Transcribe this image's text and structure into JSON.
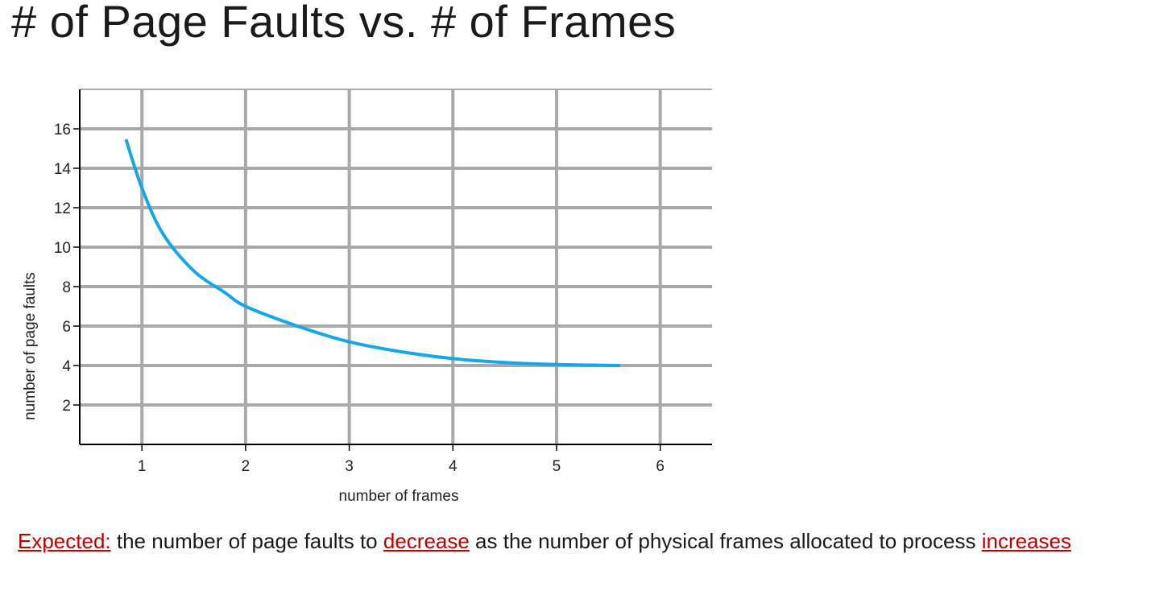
{
  "slide": {
    "title": "# of Page Faults vs. # of Frames"
  },
  "caption": {
    "expected_label": "Expected:",
    "text_1": " the number of page faults to ",
    "decrease": "decrease",
    "text_2": " as the number of physical frames allocated to process ",
    "increases": "increases"
  },
  "chart_data": {
    "type": "line",
    "title": "",
    "xlabel": "number of frames",
    "ylabel": "number of page faults",
    "x_ticks": [
      1,
      2,
      3,
      4,
      5,
      6
    ],
    "y_ticks": [
      2,
      4,
      6,
      8,
      10,
      12,
      14,
      16
    ],
    "xlim": [
      0.4,
      6.5
    ],
    "ylim": [
      0,
      18
    ],
    "grid": true,
    "colors": {
      "curve": "#14a8e6",
      "grid": "#a9a9a9",
      "axis": "#000000"
    },
    "series": [
      {
        "x": [
          0.85,
          1.0,
          1.2,
          1.5,
          1.8,
          2.0,
          2.5,
          3.0,
          3.5,
          4.0,
          4.5,
          5.0,
          5.6
        ],
        "y": [
          15.4,
          13.0,
          10.7,
          8.8,
          7.7,
          7.0,
          6.0,
          5.2,
          4.7,
          4.35,
          4.15,
          4.05,
          4.0
        ]
      }
    ]
  }
}
